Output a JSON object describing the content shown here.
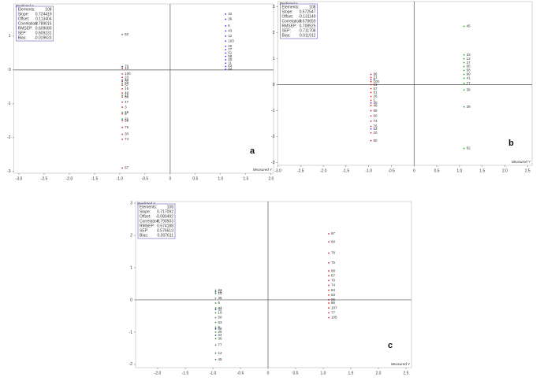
{
  "chart_data": [
    {
      "type": "scatter",
      "letter": "a",
      "y_title": "Predicted Y",
      "x_title": "Measured Y",
      "xlim": [
        -3.1,
        2.05
      ],
      "ylim": [
        -3.05,
        1.95
      ],
      "xticks": [
        {
          "value": -3,
          "label": "-3.0"
        },
        -2.5,
        {
          "value": -2,
          "label": "-2.0"
        },
        -1.5,
        {
          "value": -1,
          "label": "-1.0"
        },
        -0.5,
        0,
        0.5,
        {
          "value": 1,
          "label": "1.0"
        },
        1.5,
        {
          "value": 2,
          "label": "2.0"
        }
      ],
      "yticks": [
        -3,
        -2,
        -1,
        0,
        1
      ],
      "stats": [
        {
          "label": "Elements:",
          "value": "108"
        },
        {
          "label": "Slope:",
          "value": "0.724419"
        },
        {
          "label": "Offset:",
          "value": "0.113404"
        },
        {
          "label": "Correlation:",
          "value": "0.789015"
        },
        {
          "label": "RMSEP:",
          "value": "0.609080"
        },
        {
          "label": "SEP:",
          "value": "0.609231"
        },
        {
          "label": "Bias:",
          "value": "-0.019623"
        }
      ],
      "series": [
        {
          "color": "#d62728",
          "x": [
            -0.95,
            -0.95,
            -0.95,
            -0.95,
            -0.95,
            -0.95,
            -0.95,
            -0.95,
            -0.95,
            -0.95,
            -0.95,
            -0.95,
            -0.95,
            -0.95,
            -0.95,
            -0.95
          ],
          "values": [
            0.05,
            -0.12,
            -0.22,
            -0.34,
            -0.45,
            -0.56,
            -0.68,
            -0.8,
            -0.95,
            -1.1,
            -1.3,
            -1.5,
            -1.7,
            -1.9,
            -2.05,
            -2.9
          ],
          "labels": [
            "13",
            "100",
            "23",
            "31",
            "57",
            "15",
            "40",
            "88",
            "47",
            "3",
            "9",
            "56",
            "76",
            "30",
            "74",
            "67"
          ]
        },
        {
          "color": "#2ca02c",
          "x": [
            -0.95,
            -0.95,
            -0.95,
            -0.95,
            -0.95
          ],
          "values": [
            1.05,
            -0.4,
            -0.75,
            -1.25,
            -1.45
          ],
          "labels": [
            "62",
            "52",
            "17",
            "29",
            "21"
          ]
        },
        {
          "color": "#1f3fbf",
          "x": [
            -0.95,
            -0.95
          ],
          "values": [
            0.1,
            -0.3
          ],
          "labels": [
            "70",
            "34"
          ]
        },
        {
          "color": "#5b2bc4",
          "x": [
            1.1,
            1.1,
            1.1,
            1.1,
            1.1,
            1.1,
            1.1,
            1.1,
            1.1,
            1.1,
            1.1,
            1.1,
            1.1,
            1.1
          ],
          "values": [
            1.65,
            1.5,
            1.3,
            1.15,
            1.0,
            0.85,
            0.7,
            0.6,
            0.5,
            0.4,
            0.3,
            0.2,
            0.1,
            0.02
          ],
          "labels": [
            "32",
            "36",
            "6",
            "43",
            "12",
            "103",
            "20",
            "77",
            "51",
            "58",
            "29",
            "11",
            "64",
            "44"
          ]
        }
      ]
    },
    {
      "type": "scatter",
      "letter": "b",
      "y_title": "Predicted Y",
      "x_title": "Measured Y",
      "xlim": [
        -3.0,
        2.6
      ],
      "ylim": [
        -3.1,
        3.2
      ],
      "xticks": [
        {
          "value": -3,
          "label": "-3.0"
        },
        -2.5,
        {
          "value": -2,
          "label": "-2.0"
        },
        -1.5,
        {
          "value": -1,
          "label": "-1.0"
        },
        -0.5,
        0,
        0.5,
        {
          "value": 1,
          "label": "1.0"
        },
        1.5,
        {
          "value": 2,
          "label": "2.0"
        },
        2.5
      ],
      "yticks": [
        -3,
        -2,
        -1,
        0,
        1,
        2,
        3
      ],
      "stats": [
        {
          "label": "Elements:",
          "value": "108"
        },
        {
          "label": "Slope:",
          "value": "0.572547"
        },
        {
          "label": "Offset:",
          "value": "-0.131149"
        },
        {
          "label": "Correlation:",
          "value": "0.678659"
        },
        {
          "label": "RMSEP:",
          "value": "0.708525"
        },
        {
          "label": "SEP:",
          "value": "0.711708"
        },
        {
          "label": "Bias:",
          "value": "0.011912"
        }
      ],
      "series": [
        {
          "color": "#d62728",
          "x": [
            -0.95,
            -0.95,
            -0.95,
            -0.95,
            -0.95,
            -0.95,
            -0.95,
            -0.95,
            -0.95,
            -0.95,
            -0.95,
            -0.95,
            -0.95,
            -0.95,
            -0.95
          ],
          "values": [
            0.4,
            0.28,
            0.12,
            0.0,
            -0.15,
            -0.3,
            -0.45,
            -0.6,
            -0.8,
            -1.0,
            -1.2,
            -1.4,
            -1.6,
            -1.85,
            -2.15
          ],
          "labels": [
            "96",
            "71",
            "100",
            "83",
            "57",
            "91",
            "26",
            "1",
            "48",
            "66",
            "60",
            "74",
            "76",
            "20",
            "80"
          ]
        },
        {
          "color": "#5b2bc4",
          "x": [
            -0.95,
            -0.95,
            -0.95
          ],
          "values": [
            0.2,
            -0.7,
            -1.7
          ],
          "labels": [
            "8",
            "40",
            "53"
          ]
        },
        {
          "color": "#2ca02c",
          "x": [
            1.1,
            1.1,
            1.1,
            1.1,
            1.1,
            1.1,
            1.1,
            1.1,
            1.1,
            1.1,
            1.1,
            1.1
          ],
          "values": [
            2.25,
            1.15,
            1.0,
            0.85,
            0.7,
            0.55,
            0.4,
            0.25,
            0.05,
            -0.2,
            -0.85,
            -2.45
          ],
          "labels": [
            "45",
            "33",
            "12",
            "27",
            "65",
            "58",
            "99",
            "41",
            "77",
            "38",
            "39",
            "82"
          ]
        }
      ]
    },
    {
      "type": "scatter",
      "letter": "c",
      "y_title": "Predicted Y",
      "x_title": "Measured Y",
      "xlim": [
        -2.4,
        2.6
      ],
      "ylim": [
        -2.1,
        3.05
      ],
      "xticks": [
        {
          "value": -2,
          "label": "-2.0"
        },
        -1.5,
        {
          "value": -1,
          "label": "-1.0"
        },
        -0.5,
        0,
        0.5,
        {
          "value": 1,
          "label": "1.0"
        },
        1.5,
        {
          "value": 2,
          "label": "2.0"
        },
        2.5
      ],
      "yticks": [
        -2,
        -1,
        0,
        1,
        2,
        3
      ],
      "stats": [
        {
          "label": "Elements:",
          "value": "108"
        },
        {
          "label": "Slope:",
          "value": "0.717092"
        },
        {
          "label": "Offset:",
          "value": "-0.080492"
        },
        {
          "label": "Correlation:",
          "value": "0.790503"
        },
        {
          "label": "RMSEP:",
          "value": "0.574188"
        },
        {
          "label": "SEP:",
          "value": "0.576613"
        },
        {
          "label": "Bias:",
          "value": "0.007611"
        }
      ],
      "series": [
        {
          "color": "#2ca02c",
          "x": [
            -0.95,
            -0.95,
            -0.95,
            -0.95,
            -0.95,
            -0.95,
            -0.95,
            -0.95,
            -0.95,
            -0.95,
            -0.95,
            -0.95,
            -0.95,
            -0.95
          ],
          "values": [
            0.3,
            0.2,
            0.05,
            -0.1,
            -0.25,
            -0.4,
            -0.55,
            -0.7,
            -0.85,
            -1.0,
            -1.2,
            -1.4,
            -1.65,
            -1.85
          ],
          "labels": [
            "22",
            "15",
            "35",
            "6",
            "44",
            "19",
            "50",
            "63",
            "8",
            "25",
            "30",
            "77",
            "12",
            "45"
          ]
        },
        {
          "color": "#1f3fbf",
          "x": [
            -0.95,
            -0.95,
            -0.95,
            -0.95
          ],
          "values": [
            0.25,
            -0.3,
            -0.9,
            -1.1
          ],
          "labels": [
            "10",
            "52",
            "68",
            "24"
          ]
        },
        {
          "color": "#d62728",
          "x": [
            1.1,
            1.1,
            1.1,
            1.1,
            1.1,
            1.1,
            1.1,
            1.1,
            1.1,
            1.1,
            1.1,
            1.1,
            1.1,
            1.1,
            1.1
          ],
          "values": [
            2.05,
            1.8,
            1.45,
            1.15,
            0.9,
            0.75,
            0.6,
            0.45,
            0.3,
            0.15,
            0.0,
            -0.1,
            -0.25,
            -0.4,
            -0.55
          ],
          "labels": [
            "97",
            "80",
            "78",
            "75",
            "88",
            "67",
            "70",
            "74",
            "84",
            "83",
            "96",
            "86",
            "107",
            "77",
            "105"
          ]
        }
      ]
    }
  ]
}
